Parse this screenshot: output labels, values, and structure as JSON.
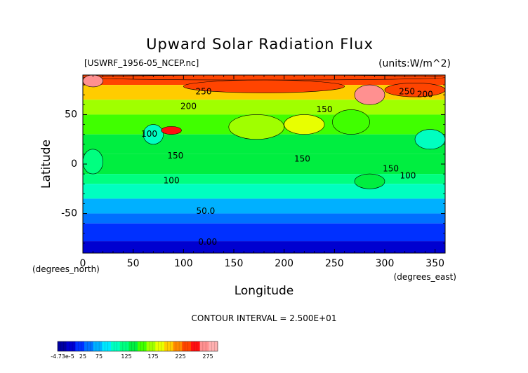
{
  "chart_data": {
    "type": "heatmap",
    "title": "Upward Solar Radiation Flux",
    "file_label": "[USWRF_1956-05_NCEP.nc]",
    "units_label": "(units:W/m^2)",
    "xlabel": "Longitude",
    "ylabel": "Latitude",
    "x_unit_label": "(degrees_east)",
    "y_unit_label": "(degrees_north)",
    "xlim": [
      0,
      360
    ],
    "ylim": [
      -90,
      90
    ],
    "x_ticks": [
      0,
      50,
      100,
      150,
      200,
      250,
      300,
      350
    ],
    "y_ticks": [
      -50,
      0,
      50
    ],
    "contour_interval_text": "CONTOUR INTERVAL = 2.500E+01",
    "contour_labels": [
      {
        "text": "250",
        "lon": 120,
        "lat": 73
      },
      {
        "text": "250",
        "lon": 322,
        "lat": 73
      },
      {
        "text": "200",
        "lon": 105,
        "lat": 58
      },
      {
        "text": "200",
        "lon": 340,
        "lat": 70
      },
      {
        "text": "150",
        "lon": 240,
        "lat": 55
      },
      {
        "text": "100",
        "lon": 66,
        "lat": 30
      },
      {
        "text": "150",
        "lon": 92,
        "lat": 8
      },
      {
        "text": "150",
        "lon": 218,
        "lat": 5
      },
      {
        "text": "150",
        "lon": 306,
        "lat": -5
      },
      {
        "text": "100",
        "lon": 323,
        "lat": -12
      },
      {
        "text": "100",
        "lon": 88,
        "lat": -17
      },
      {
        "text": "50.0",
        "lon": 122,
        "lat": -48
      },
      {
        "text": "0.00",
        "lon": 124,
        "lat": -79
      }
    ],
    "latitude_bands": [
      {
        "lat_min": 80,
        "lat_max": 90,
        "value": 230
      },
      {
        "lat_min": 65,
        "lat_max": 80,
        "value": 200
      },
      {
        "lat_min": 50,
        "lat_max": 65,
        "value": 165
      },
      {
        "lat_min": 30,
        "lat_max": 50,
        "value": 140
      },
      {
        "lat_min": 10,
        "lat_max": 30,
        "value": 125
      },
      {
        "lat_min": -10,
        "lat_max": 10,
        "value": 130
      },
      {
        "lat_min": -20,
        "lat_max": -10,
        "value": 110
      },
      {
        "lat_min": -35,
        "lat_max": -20,
        "value": 85
      },
      {
        "lat_min": -50,
        "lat_max": -35,
        "value": 65
      },
      {
        "lat_min": -60,
        "lat_max": -50,
        "value": 40
      },
      {
        "lat_min": -78,
        "lat_max": -60,
        "value": 20
      },
      {
        "lat_min": -90,
        "lat_max": -78,
        "value": -5
      }
    ],
    "regions": [
      {
        "lon_min": 0,
        "lon_max": 360,
        "lat_min": 85,
        "lat_max": 90,
        "value": 240
      },
      {
        "lon_min": 0,
        "lon_max": 20,
        "lat_min": 78,
        "lat_max": 90,
        "value": 270
      },
      {
        "lon_min": 100,
        "lon_max": 260,
        "lat_min": 72,
        "lat_max": 85,
        "value": 245
      },
      {
        "lon_min": 270,
        "lon_max": 300,
        "lat_min": 60,
        "lat_max": 80,
        "value": 280
      },
      {
        "lon_min": 300,
        "lon_max": 360,
        "lat_min": 68,
        "lat_max": 82,
        "value": 235
      },
      {
        "lon_min": 60,
        "lon_max": 80,
        "lat_min": 20,
        "lat_max": 40,
        "value": 95
      },
      {
        "lon_min": 78,
        "lon_max": 98,
        "lat_min": 30,
        "lat_max": 38,
        "value": 255
      },
      {
        "lon_min": 145,
        "lon_max": 200,
        "lat_min": 25,
        "lat_max": 50,
        "value": 170
      },
      {
        "lon_min": 200,
        "lon_max": 240,
        "lat_min": 30,
        "lat_max": 50,
        "value": 175
      },
      {
        "lon_min": 248,
        "lon_max": 285,
        "lat_min": 30,
        "lat_max": 55,
        "value": 150
      },
      {
        "lon_min": 330,
        "lon_max": 360,
        "lat_min": 15,
        "lat_max": 35,
        "value": 100
      },
      {
        "lon_min": 0,
        "lon_max": 20,
        "lat_min": -10,
        "lat_max": 15,
        "value": 105
      },
      {
        "lon_min": 270,
        "lon_max": 300,
        "lat_min": -25,
        "lat_max": -10,
        "value": 135
      }
    ],
    "colorbar": {
      "tick_labels": [
        "-4.73e-5",
        "25",
        "75",
        "125",
        "175",
        "225",
        "275"
      ],
      "colors": [
        "#0000a0",
        "#0000d0",
        "#0030ff",
        "#0070ff",
        "#00b0ff",
        "#00e8ff",
        "#00ffc0",
        "#00ff80",
        "#00ee40",
        "#40ff00",
        "#a0ff00",
        "#e8ff00",
        "#ffcc00",
        "#ff8800",
        "#ff4400",
        "#ff1010",
        "#ff9090",
        "#ffb0b0"
      ],
      "value_min": -25,
      "value_max": 300
    }
  }
}
